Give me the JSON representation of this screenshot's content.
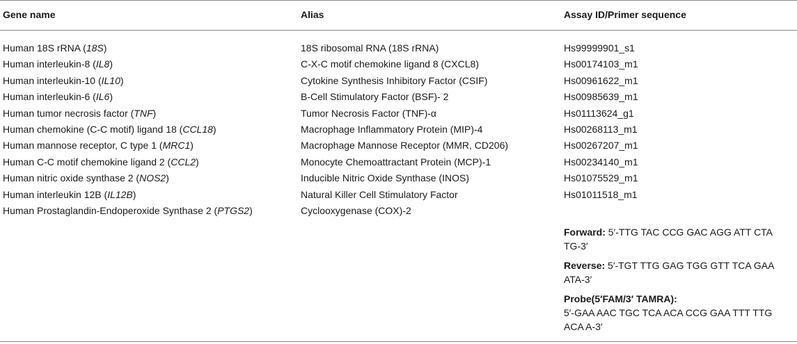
{
  "headers": {
    "gene": "Gene name",
    "alias": "Alias",
    "assay": "Assay ID/Primer sequence"
  },
  "rows": [
    {
      "gene_prefix": "Human 18S rRNA (",
      "gene_italic": "18S",
      "gene_suffix": ")",
      "alias": "18S ribosomal RNA (18S rRNA)",
      "assay": "Hs99999901_s1"
    },
    {
      "gene_prefix": "Human interleukin-8 (",
      "gene_italic": "IL8",
      "gene_suffix": ")",
      "alias": "C-X-C motif chemokine ligand 8 (CXCL8)",
      "assay": "Hs00174103_m1"
    },
    {
      "gene_prefix": "Human interleukin-10 (",
      "gene_italic": "IL10",
      "gene_suffix": ")",
      "alias": "Cytokine Synthesis Inhibitory Factor (CSIF)",
      "assay": "Hs00961622_m1"
    },
    {
      "gene_prefix": "Human interleukin-6 (",
      "gene_italic": "IL6",
      "gene_suffix": ")",
      "alias": "B-Cell Stimulatory Factor (BSF)- 2",
      "assay": "Hs00985639_m1"
    },
    {
      "gene_prefix": "Human tumor necrosis factor (",
      "gene_italic": "TNF",
      "gene_suffix": ")",
      "alias": "Tumor Necrosis Factor (TNF)-α",
      "assay": "Hs01113624_g1"
    },
    {
      "gene_prefix": "Human chemokine (C-C motif) ligand 18 (",
      "gene_italic": "CCL18",
      "gene_suffix": ")",
      "alias": "Macrophage Inflammatory Protein (MIP)-4",
      "assay": "Hs00268113_m1"
    },
    {
      "gene_prefix": "Human mannose receptor, C type 1 (",
      "gene_italic": "MRC1",
      "gene_suffix": ")",
      "alias": "Macrophage Mannose Receptor (MMR, CD206)",
      "assay": "Hs00267207_m1"
    },
    {
      "gene_prefix": "Human C-C motif chemokine ligand 2 (",
      "gene_italic": "CCL2",
      "gene_suffix": ")",
      "alias": "Monocyte Chemoattractant Protein (MCP)-1",
      "assay": "Hs00234140_m1"
    },
    {
      "gene_prefix": "Human nitric oxide synthase 2 (",
      "gene_italic": "NOS2",
      "gene_suffix": ")",
      "alias": "Inducible Nitric Oxide Synthase (INOS)",
      "assay": "Hs01075529_m1"
    },
    {
      "gene_prefix": "Human interleukin 12B (",
      "gene_italic": "IL12B",
      "gene_suffix": ")",
      "alias": "Natural Killer Cell Stimulatory Factor",
      "assay": "Hs01011518_m1"
    },
    {
      "gene_prefix": "Human Prostaglandin-Endoperoxide Synthase 2 (",
      "gene_italic": "PTGS2",
      "gene_suffix": ")",
      "alias": "Cyclooxygenase (COX)-2",
      "assay": ""
    }
  ],
  "primers": {
    "forward_label": "Forward:",
    "forward_line1": " 5′-TTG TAC CCG GAC AGG ATT CTA",
    "forward_line2": "TG-3′",
    "reverse_label": "Reverse:",
    "reverse_line1": " 5′-TGT TTG GAG TGG GTT TCA GAA",
    "reverse_line2": "ATA-3′",
    "probe_label": "Probe(5′FAM/3′ TAMRA):",
    "probe_line1": "5′-GAA AAC TGC TCA ACA CCG GAA TTT TTG",
    "probe_line2": "ACA A-3′"
  }
}
